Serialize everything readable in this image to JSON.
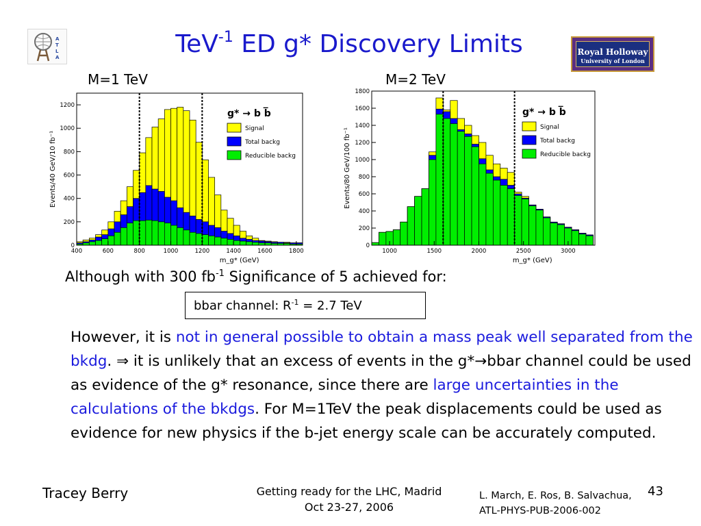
{
  "slide": {
    "title_prefix": "TeV",
    "title_sup": "-1",
    "title_rest": " ED g* Discovery Limits",
    "logo_right_line1": "Royal Holloway",
    "logo_right_line2": "University of London",
    "sig_line_prefix": "Although with 300 fb",
    "sig_line_sup": "-1",
    "sig_line_rest": " Significance of 5 achieved for:",
    "box_prefix": "bbar channel: R",
    "box_sup": "-1",
    "box_rest": " = 2.7 TeV",
    "para": {
      "s1": "However, it is ",
      "b1": "not in general possible to obtain a mass peak well separated from the bkdg",
      "s2": ". ⇒ it is unlikely that an excess of events in the g*→bbar channel could be used as evidence of the g* resonance, since there are ",
      "b2": "large uncertainties in the calculations of the bkdgs",
      "s3": ". For M=1TeV the peak displacements could be used as evidence for new physics if the b-jet energy scale can be accurately computed."
    },
    "footer_author": "Tracey Berry",
    "footer_conf_line1": "Getting ready for the LHC, Madrid",
    "footer_conf_line2": "Oct 23-27, 2006",
    "footer_ref_line1": "L. March, E. Ros, B. Salvachua,",
    "footer_ref_line2": "ATL-PHYS-PUB-2006-002",
    "page_number": "43",
    "colors": {
      "title": "#1a1acc",
      "signal": "#ffff00",
      "total_backg": "#0000ff",
      "reducible_backg": "#00ee00",
      "cut_line": "#000000"
    }
  },
  "chart_data": [
    {
      "type": "bar",
      "panel_label": "M=1 TeV",
      "ylabel": "Events/40 GeV/10 fb⁻¹",
      "xlabel": "m_g* (GeV)",
      "xlim": [
        400,
        1840
      ],
      "ylim": [
        0,
        1300
      ],
      "xticks": [
        400,
        600,
        800,
        1000,
        1200,
        1400,
        1600,
        1800
      ],
      "yticks": [
        0,
        200,
        400,
        600,
        800,
        1000,
        1200
      ],
      "cuts": [
        800,
        1200
      ],
      "legend_title": "g* → b b̅",
      "legend": [
        "Signal",
        "Total backg",
        "Reducible backg"
      ],
      "bin_edges": [
        400,
        440,
        480,
        520,
        560,
        600,
        640,
        680,
        720,
        760,
        800,
        840,
        880,
        920,
        960,
        1000,
        1040,
        1080,
        1120,
        1160,
        1200,
        1240,
        1280,
        1320,
        1360,
        1400,
        1440,
        1480,
        1520,
        1560,
        1600,
        1640,
        1680,
        1720,
        1760,
        1800,
        1840
      ],
      "series": [
        {
          "name": "Signal",
          "values": [
            30,
            45,
            60,
            90,
            130,
            200,
            290,
            380,
            500,
            640,
            790,
            920,
            1010,
            1080,
            1160,
            1170,
            1180,
            1150,
            1070,
            880,
            730,
            580,
            430,
            300,
            230,
            170,
            120,
            80,
            60,
            40,
            35,
            30,
            25,
            25,
            20,
            20
          ]
        },
        {
          "name": "Total backg",
          "values": [
            20,
            30,
            45,
            70,
            90,
            140,
            200,
            260,
            330,
            400,
            450,
            510,
            480,
            460,
            410,
            380,
            320,
            280,
            250,
            220,
            200,
            170,
            150,
            120,
            100,
            80,
            60,
            50,
            40,
            35,
            30,
            25,
            25,
            20,
            20,
            20
          ]
        },
        {
          "name": "Reducible backg",
          "values": [
            10,
            20,
            30,
            40,
            55,
            80,
            110,
            150,
            190,
            210,
            210,
            215,
            210,
            200,
            190,
            170,
            150,
            130,
            110,
            100,
            90,
            80,
            70,
            60,
            50,
            40,
            35,
            30,
            25,
            20,
            20,
            15,
            15,
            15,
            10,
            10
          ]
        }
      ]
    },
    {
      "type": "bar",
      "panel_label": "M=2 TeV",
      "ylabel": "Events/80 GeV/100 fb⁻¹",
      "xlabel": "m_g* (GeV)",
      "xlim": [
        800,
        3300
      ],
      "ylim": [
        0,
        1800
      ],
      "xticks": [
        1000,
        1500,
        2000,
        2500,
        3000
      ],
      "yticks": [
        0,
        200,
        400,
        600,
        800,
        1000,
        1200,
        1400,
        1600,
        1800
      ],
      "cuts": [
        1600,
        2400
      ],
      "legend_title": "g* → b b̅",
      "legend": [
        "Signal",
        "Total backg",
        "Reducible backg"
      ],
      "bin_edges": [
        800,
        880,
        960,
        1040,
        1120,
        1200,
        1280,
        1360,
        1440,
        1520,
        1600,
        1680,
        1760,
        1840,
        1920,
        2000,
        2080,
        2160,
        2240,
        2320,
        2400,
        2480,
        2560,
        2640,
        2720,
        2800,
        2880,
        2960,
        3040,
        3120,
        3200,
        3280
      ],
      "series": [
        {
          "name": "Signal",
          "values": [
            30,
            150,
            160,
            180,
            270,
            450,
            570,
            660,
            1090,
            1720,
            1580,
            1690,
            1480,
            1400,
            1280,
            1200,
            1050,
            950,
            900,
            850,
            620,
            570,
            470,
            420,
            330,
            270,
            250,
            210,
            180,
            140,
            120
          ]
        },
        {
          "name": "Total backg",
          "values": [
            30,
            150,
            160,
            180,
            270,
            450,
            570,
            660,
            1050,
            1590,
            1560,
            1480,
            1350,
            1300,
            1180,
            1010,
            880,
            800,
            770,
            700,
            600,
            550,
            470,
            420,
            330,
            270,
            250,
            210,
            180,
            140,
            120
          ]
        },
        {
          "name": "Reducible backg",
          "values": [
            30,
            150,
            160,
            180,
            270,
            450,
            570,
            660,
            1000,
            1530,
            1480,
            1420,
            1330,
            1270,
            1150,
            950,
            840,
            760,
            700,
            660,
            580,
            540,
            460,
            410,
            320,
            260,
            240,
            200,
            170,
            130,
            110
          ]
        }
      ]
    }
  ]
}
